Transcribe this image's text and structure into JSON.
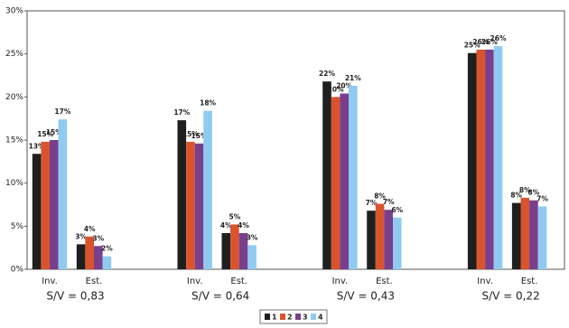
{
  "chart_data": {
    "type": "bar",
    "categories": [
      "Inv.",
      "Est.",
      "Inv.",
      "Est.",
      "Inv.",
      "Est.",
      "Inv.",
      "Est."
    ],
    "groups": [
      "S/V = 0,83",
      "S/V = 0,64",
      "S/V = 0,43",
      "S/V = 0,22"
    ],
    "series": [
      {
        "name": "1",
        "color": "#1f1f1f",
        "values": [
          13.4,
          2.9,
          17.3,
          4.2,
          21.8,
          6.8,
          25.1,
          7.7
        ],
        "value_labels": [
          "13%",
          "3%",
          "17%",
          "4%",
          "22%",
          "7%",
          "25%",
          "8%"
        ]
      },
      {
        "name": "2",
        "color": "#d9542c",
        "values": [
          14.8,
          3.8,
          14.8,
          5.2,
          20.0,
          7.6,
          25.5,
          8.3
        ],
        "value_labels": [
          "15%",
          "4%",
          "15%",
          "5%",
          "20%",
          "8%",
          "26%",
          "8%"
        ]
      },
      {
        "name": "3",
        "color": "#7a3f8c",
        "values": [
          15.0,
          2.7,
          14.6,
          4.2,
          20.4,
          6.9,
          25.5,
          8.0
        ],
        "value_labels": [
          "15%",
          "3%",
          "15%",
          "4%",
          "20%",
          "7%",
          "26%",
          "8%"
        ]
      },
      {
        "name": "4",
        "color": "#8fcbf0",
        "values": [
          17.4,
          1.5,
          18.4,
          2.8,
          21.3,
          6.0,
          25.9,
          7.3
        ],
        "value_labels": [
          "17%",
          "2%",
          "18%",
          "3%",
          "21%",
          "6%",
          "26%",
          "7%"
        ]
      }
    ],
    "ylim": [
      0,
      30
    ],
    "yticks": [
      {
        "value": 0,
        "label": "0%"
      },
      {
        "value": 5,
        "label": "5%"
      },
      {
        "value": 10,
        "label": "10%"
      },
      {
        "value": 15,
        "label": "15%"
      },
      {
        "value": 20,
        "label": "20%"
      },
      {
        "value": 25,
        "label": "25%"
      },
      {
        "value": 30,
        "label": "30%"
      }
    ],
    "grid": false,
    "legend": "bottom"
  }
}
